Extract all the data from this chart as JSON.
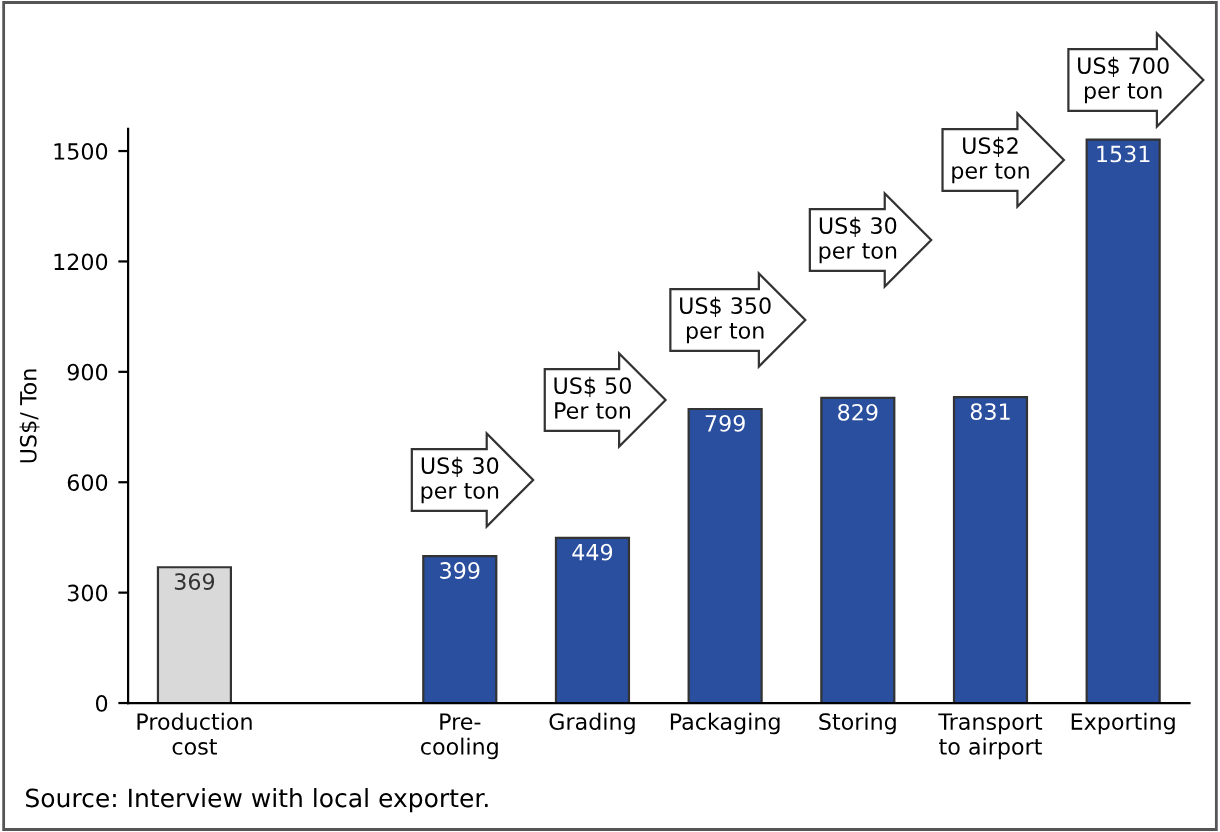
{
  "chart_data": {
    "type": "bar",
    "ylabel": "US$/ Ton",
    "categories": [
      "Production\ncost",
      null,
      "Pre-\ncooling",
      "Grading",
      "Packaging",
      "Storing",
      "Transport\nto airport",
      "Exporting"
    ],
    "values": [
      369,
      null,
      399,
      449,
      799,
      829,
      831,
      1531
    ],
    "colors": [
      "#d9d9d9",
      "#2a4f9e",
      "#2a4f9e",
      "#2a4f9e",
      "#2a4f9e",
      "#2a4f9e",
      "#2a4f9e",
      "#2a4f9e"
    ],
    "data_labels": true,
    "ylim": [
      0,
      1560
    ],
    "yticks": [
      0,
      300,
      600,
      900,
      1200,
      1500
    ],
    "grid": false,
    "annotations": [
      "US$ 30\nper ton",
      "US$ 50\nPer ton",
      "US$ 350\nper ton",
      "US$ 30\nper ton",
      "US$2\nper ton",
      "US$ 700\nper ton",
      "Source: Interview with local exporter."
    ]
  }
}
